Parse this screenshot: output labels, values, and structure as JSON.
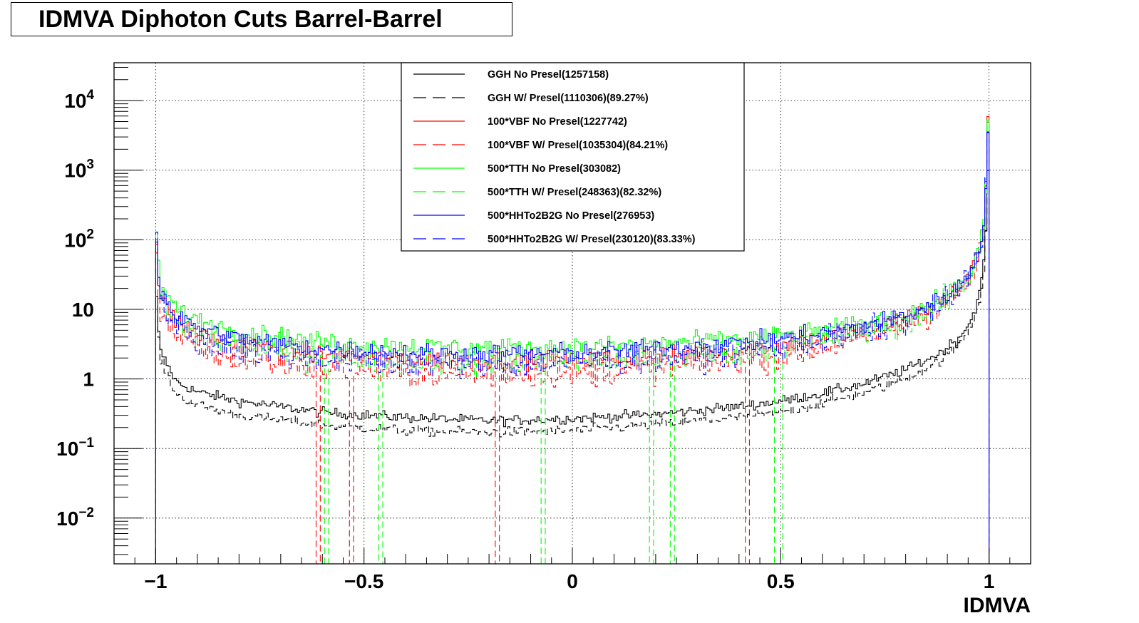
{
  "chart_data": {
    "type": "line",
    "title": "IDMVA Diphoton Cuts Barrel-Barrel",
    "xlabel": "IDMVA",
    "ylabel": "",
    "xlim": [
      -1.1,
      1.1
    ],
    "ylim": [
      0.0022,
      35000
    ],
    "log_y": true,
    "grid": true,
    "legend_position": "top-center",
    "x_ticks": [
      {
        "value": -1,
        "label": "−1"
      },
      {
        "value": -0.5,
        "label": "−0.5"
      },
      {
        "value": 0,
        "label": "0"
      },
      {
        "value": 0.5,
        "label": "0.5"
      },
      {
        "value": 1,
        "label": "1"
      }
    ],
    "y_ticks": [
      {
        "value": 0.01,
        "base": "10",
        "exp": "−2"
      },
      {
        "value": 0.1,
        "base": "10",
        "exp": "−1"
      },
      {
        "value": 1,
        "base": "1",
        "exp": ""
      },
      {
        "value": 10,
        "base": "10",
        "exp": ""
      },
      {
        "value": 100,
        "base": "10",
        "exp": "2"
      },
      {
        "value": 1000,
        "base": "10",
        "exp": "3"
      },
      {
        "value": 10000,
        "base": "10",
        "exp": "4"
      }
    ],
    "series": [
      {
        "name": "GGH No Presel(1257158)",
        "color": "#000000",
        "dash": "solid",
        "profile": [
          [
            -1.0,
            25
          ],
          [
            -0.99,
            2.6
          ],
          [
            -0.95,
            0.9
          ],
          [
            -0.9,
            0.65
          ],
          [
            -0.8,
            0.48
          ],
          [
            -0.6,
            0.33
          ],
          [
            -0.4,
            0.28
          ],
          [
            -0.2,
            0.25
          ],
          [
            0.0,
            0.27
          ],
          [
            0.2,
            0.31
          ],
          [
            0.4,
            0.4
          ],
          [
            0.5,
            0.48
          ],
          [
            0.6,
            0.62
          ],
          [
            0.7,
            0.85
          ],
          [
            0.8,
            1.35
          ],
          [
            0.88,
            2.3
          ],
          [
            0.93,
            4.0
          ],
          [
            0.96,
            7.5
          ],
          [
            0.98,
            20
          ],
          [
            0.99,
            60
          ],
          [
            1.0,
            2300
          ]
        ]
      },
      {
        "name": "GGH W/ Presel(1110306)(89.27%)",
        "color": "#000000",
        "dash": "long",
        "profile": [
          [
            -1.0,
            20
          ],
          [
            -0.99,
            2.0
          ],
          [
            -0.95,
            0.6
          ],
          [
            -0.9,
            0.42
          ],
          [
            -0.8,
            0.3
          ],
          [
            -0.6,
            0.22
          ],
          [
            -0.4,
            0.18
          ],
          [
            -0.2,
            0.17
          ],
          [
            0.0,
            0.18
          ],
          [
            0.2,
            0.22
          ],
          [
            0.4,
            0.28
          ],
          [
            0.5,
            0.33
          ],
          [
            0.6,
            0.45
          ],
          [
            0.7,
            0.63
          ],
          [
            0.8,
            1.0
          ],
          [
            0.88,
            1.8
          ],
          [
            0.93,
            3.2
          ],
          [
            0.96,
            6.0
          ],
          [
            0.98,
            16
          ],
          [
            0.99,
            50
          ],
          [
            1.0,
            2100
          ]
        ]
      },
      {
        "name": "100*VBF No Presel(1227742)",
        "color": "#ff0000",
        "dash": "solid",
        "profile": [
          [
            -1.0,
            150
          ],
          [
            -0.99,
            15
          ],
          [
            -0.95,
            6.5
          ],
          [
            -0.9,
            4.5
          ],
          [
            -0.8,
            3.2
          ],
          [
            -0.6,
            2.2
          ],
          [
            -0.4,
            1.9
          ],
          [
            -0.2,
            1.8
          ],
          [
            0.0,
            1.9
          ],
          [
            0.2,
            2.1
          ],
          [
            0.4,
            2.6
          ],
          [
            0.5,
            3.0
          ],
          [
            0.6,
            3.8
          ],
          [
            0.7,
            5.0
          ],
          [
            0.8,
            7.5
          ],
          [
            0.88,
            12
          ],
          [
            0.93,
            20
          ],
          [
            0.96,
            35
          ],
          [
            0.98,
            80
          ],
          [
            0.99,
            200
          ],
          [
            1.0,
            20000
          ]
        ]
      },
      {
        "name": "100*VBF W/ Presel(1035304)(84.21%)",
        "color": "#ff0000",
        "dash": "long",
        "profile": [
          [
            -1.0,
            120
          ],
          [
            -0.99,
            10
          ],
          [
            -0.95,
            4.0
          ],
          [
            -0.9,
            2.6
          ],
          [
            -0.8,
            1.9
          ],
          [
            -0.6,
            1.4
          ],
          [
            -0.4,
            1.2
          ],
          [
            -0.2,
            1.15
          ],
          [
            0.0,
            1.2
          ],
          [
            0.2,
            1.4
          ],
          [
            0.4,
            1.8
          ],
          [
            0.5,
            2.1
          ],
          [
            0.6,
            2.8
          ],
          [
            0.7,
            3.8
          ],
          [
            0.8,
            6.0
          ],
          [
            0.88,
            10
          ],
          [
            0.93,
            17
          ],
          [
            0.96,
            30
          ],
          [
            0.98,
            70
          ],
          [
            0.99,
            180
          ],
          [
            1.0,
            18000
          ]
        ],
        "gaps": [
          -0.61,
          -0.53,
          -0.18,
          0.42
        ]
      },
      {
        "name": "500*TTH No Presel(303082)",
        "color": "#00ff00",
        "dash": "solid",
        "profile": [
          [
            -1.0,
            210
          ],
          [
            -0.99,
            22
          ],
          [
            -0.95,
            10
          ],
          [
            -0.9,
            7
          ],
          [
            -0.8,
            4.8
          ],
          [
            -0.6,
            3.4
          ],
          [
            -0.4,
            3.0
          ],
          [
            -0.2,
            2.8
          ],
          [
            0.0,
            2.9
          ],
          [
            0.2,
            3.2
          ],
          [
            0.4,
            3.8
          ],
          [
            0.5,
            4.2
          ],
          [
            0.6,
            5.0
          ],
          [
            0.7,
            6.2
          ],
          [
            0.8,
            8.5
          ],
          [
            0.88,
            13
          ],
          [
            0.93,
            22
          ],
          [
            0.96,
            40
          ],
          [
            0.98,
            90
          ],
          [
            0.99,
            230
          ],
          [
            1.0,
            12000
          ]
        ]
      },
      {
        "name": "500*TTH W/ Presel(248363)(82.32%)",
        "color": "#00ff00",
        "dash": "long",
        "profile": [
          [
            -1.0,
            180
          ],
          [
            -0.99,
            16
          ],
          [
            -0.95,
            6
          ],
          [
            -0.9,
            4
          ],
          [
            -0.8,
            2.9
          ],
          [
            -0.6,
            2.1
          ],
          [
            -0.4,
            1.8
          ],
          [
            -0.2,
            1.7
          ],
          [
            0.0,
            1.8
          ],
          [
            0.2,
            2.0
          ],
          [
            0.4,
            2.5
          ],
          [
            0.5,
            2.9
          ],
          [
            0.6,
            3.6
          ],
          [
            0.7,
            4.7
          ],
          [
            0.8,
            6.8
          ],
          [
            0.88,
            11
          ],
          [
            0.93,
            19
          ],
          [
            0.96,
            34
          ],
          [
            0.98,
            80
          ],
          [
            0.99,
            200
          ],
          [
            1.0,
            11000
          ]
        ],
        "gaps": [
          -0.59,
          -0.46,
          -0.07,
          0.19,
          0.24,
          0.49,
          0.5
        ]
      },
      {
        "name": "500*HHTo2B2G No Presel(276953)",
        "color": "#0000ff",
        "dash": "solid",
        "profile": [
          [
            -1.0,
            190
          ],
          [
            -0.99,
            18
          ],
          [
            -0.95,
            8
          ],
          [
            -0.9,
            5.5
          ],
          [
            -0.8,
            3.8
          ],
          [
            -0.6,
            2.7
          ],
          [
            -0.4,
            2.4
          ],
          [
            -0.2,
            2.3
          ],
          [
            0.0,
            2.4
          ],
          [
            0.2,
            2.7
          ],
          [
            0.4,
            3.3
          ],
          [
            0.5,
            3.8
          ],
          [
            0.6,
            4.6
          ],
          [
            0.7,
            5.8
          ],
          [
            0.8,
            8.2
          ],
          [
            0.88,
            13
          ],
          [
            0.93,
            22
          ],
          [
            0.96,
            38
          ],
          [
            0.98,
            85
          ],
          [
            0.99,
            220
          ],
          [
            1.0,
            14000
          ]
        ]
      },
      {
        "name": "500*HHTo2B2G W/ Presel(230120)(83.33%)",
        "color": "#0000ff",
        "dash": "long",
        "profile": [
          [
            -1.0,
            170
          ],
          [
            -0.99,
            14
          ],
          [
            -0.95,
            5.5
          ],
          [
            -0.9,
            3.6
          ],
          [
            -0.8,
            2.6
          ],
          [
            -0.6,
            1.9
          ],
          [
            -0.4,
            1.7
          ],
          [
            -0.2,
            1.6
          ],
          [
            0.0,
            1.7
          ],
          [
            0.2,
            1.95
          ],
          [
            0.4,
            2.5
          ],
          [
            0.5,
            2.9
          ],
          [
            0.6,
            3.6
          ],
          [
            0.7,
            4.7
          ],
          [
            0.8,
            6.8
          ],
          [
            0.88,
            11
          ],
          [
            0.93,
            19
          ],
          [
            0.96,
            34
          ],
          [
            0.98,
            78
          ],
          [
            0.99,
            200
          ],
          [
            1.0,
            13000
          ]
        ]
      }
    ]
  }
}
